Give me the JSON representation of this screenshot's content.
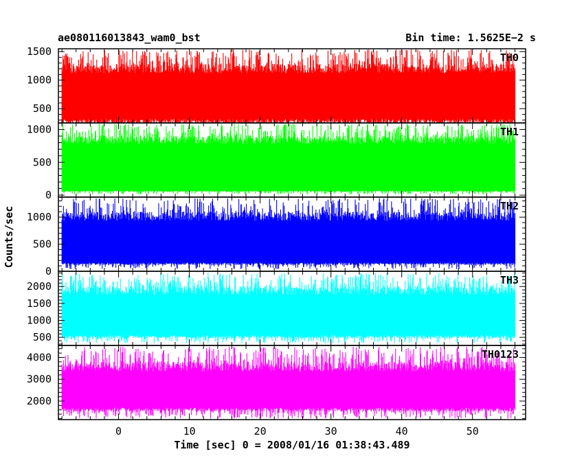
{
  "chart_data": {
    "type": "line",
    "title_left": "ae080116013843_wam0_bst",
    "title_right": "Bin time: 1.5625E−2 s",
    "xlabel": "Time [sec] 0 = 2008/01/16 01:38:43.489",
    "ylabel": "Counts/sec",
    "xlim": [
      -8.5,
      57.5
    ],
    "x_data_range": [
      -8,
      56
    ],
    "x_ticks": [
      0,
      10,
      20,
      30,
      40,
      50
    ],
    "panels": [
      {
        "name": "TH0",
        "color": "#ff0000",
        "ylim": [
          250,
          1550
        ],
        "y_ticks": [
          500,
          1000,
          1500
        ],
        "band": [
          320,
          1120
        ],
        "spike_min": 90,
        "spike_max": 1540
      },
      {
        "name": "TH1",
        "color": "#00ff00",
        "ylim": [
          -30,
          1100
        ],
        "y_ticks": [
          0,
          500,
          1000
        ],
        "band": [
          70,
          780
        ],
        "spike_min": 10,
        "spike_max": 1090
      },
      {
        "name": "TH2",
        "color": "#0000ff",
        "ylim": [
          0,
          1370
        ],
        "y_ticks": [
          0,
          500,
          1000
        ],
        "band": [
          160,
          930
        ],
        "spike_min": 40,
        "spike_max": 1350
      },
      {
        "name": "TH3",
        "color": "#00ffff",
        "ylim": [
          260,
          2450
        ],
        "y_ticks": [
          500,
          1000,
          1500,
          2000
        ],
        "band": [
          560,
          1750
        ],
        "spike_min": 320,
        "spike_max": 2400
      },
      {
        "name": "TH0123",
        "color": "#ff00ff",
        "ylim": [
          1150,
          4550
        ],
        "y_ticks": [
          2000,
          3000,
          4000
        ],
        "band": [
          1700,
          3350
        ],
        "spike_min": 1200,
        "spike_max": 4500
      }
    ]
  }
}
